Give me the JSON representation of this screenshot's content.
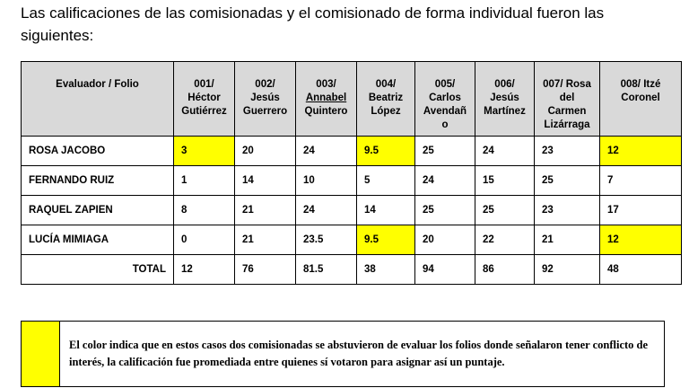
{
  "intro": "Las calificaciones de las comisionadas y el comisionado de forma individual fueron las siguientes:",
  "table": {
    "header_eval": "Evaluador / Folio",
    "columns": [
      {
        "l1": "001/",
        "l2": "Héctor",
        "l3": "Gutiérrez",
        "l4": ""
      },
      {
        "l1": "002/",
        "l2": "Jesús",
        "l3": "Guerrero",
        "l4": ""
      },
      {
        "l1": "003/",
        "l2": "Annabel",
        "l3": "Quintero",
        "l4": ""
      },
      {
        "l1": "004/",
        "l2": "Beatriz",
        "l3": "López",
        "l4": ""
      },
      {
        "l1": "005/",
        "l2": "Carlos",
        "l3": "Avendañ",
        "l4": "o"
      },
      {
        "l1": "006/",
        "l2": "Jesús",
        "l3": "Martínez",
        "l4": ""
      },
      {
        "l1": "007/ Rosa",
        "l2": "del",
        "l3": "Carmen",
        "l4": "Lizárraga"
      },
      {
        "l1": "008/ Itzé",
        "l2": "Coronel",
        "l3": "",
        "l4": ""
      }
    ],
    "rows": [
      {
        "name": "ROSA JACOBO",
        "values": [
          "3",
          "20",
          "24",
          "9.5",
          "25",
          "24",
          "23",
          "12"
        ]
      },
      {
        "name": "FERNANDO RUIZ",
        "values": [
          "1",
          "14",
          "10",
          "5",
          "24",
          "15",
          "25",
          "7"
        ]
      },
      {
        "name": "RAQUEL ZAPIEN",
        "values": [
          "8",
          "21",
          "24",
          "14",
          "25",
          "25",
          "23",
          "17"
        ]
      },
      {
        "name": "LUCÍA MIMIAGA",
        "values": [
          "0",
          "21",
          "23.5",
          "9.5",
          "20",
          "22",
          "21",
          "12"
        ]
      }
    ],
    "total": {
      "label": "TOTAL",
      "values": [
        "12",
        "76",
        "81.5",
        "38",
        "94",
        "86",
        "92",
        "48"
      ]
    }
  },
  "colors": {
    "highlight": "#ffff00",
    "header_bg": "#d9d9d9"
  },
  "note": "El color indica que en estos casos dos comisionadas se abstuvieron de evaluar los folios donde señalaron tener conflicto de interés, la calificación fue promediada entre quienes sí votaron para asignar así un puntaje."
}
